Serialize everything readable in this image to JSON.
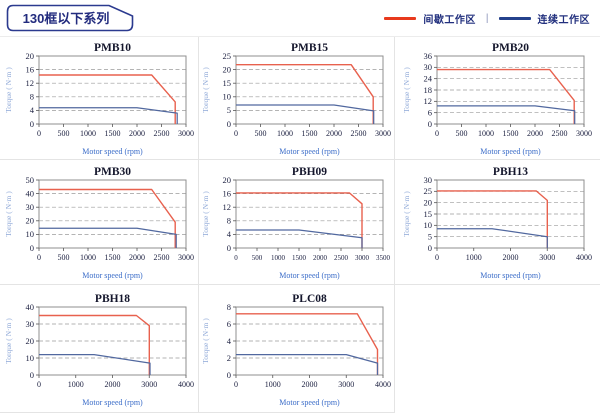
{
  "page": {
    "title": "130框以下系列"
  },
  "legend": {
    "intermittent_label": "间歇工作区",
    "continuous_label": "连续工作区",
    "separator": "|",
    "intermittent_color": "#e8391d",
    "continuous_color": "#24418c"
  },
  "chart_style": {
    "red_line_color": "#e8614e",
    "blue_line_color": "#51689f",
    "frame_color": "#8f8f8f",
    "grid_color": "#9b9b9b",
    "title_color": "#14162c",
    "tick_label_color": "#1c2040",
    "xlabel_color": "#3a6cc8",
    "ylabel_color": "#8fa9d8",
    "grid_on": true,
    "legend_position": "top-right-of-page"
  },
  "chart_data": [
    {
      "type": "line",
      "title": "PMB10",
      "xlabel": "Motor speed (rpm)",
      "ylabel": "Torque ( N·m )",
      "xlim": [
        0,
        3000
      ],
      "ylim": [
        0,
        20
      ],
      "xticks": [
        0,
        500,
        1000,
        1500,
        2000,
        2500,
        3000
      ],
      "yticks": [
        0,
        4,
        8,
        12,
        16,
        20
      ],
      "series": [
        {
          "name": "间歇工作区",
          "color": "red",
          "points": [
            [
              0,
              14.4
            ],
            [
              2300,
              14.4
            ],
            [
              2780,
              6.5
            ],
            [
              2780,
              0
            ]
          ]
        },
        {
          "name": "连续工作区",
          "color": "blue",
          "points": [
            [
              0,
              4.8
            ],
            [
              2000,
              4.8
            ],
            [
              2820,
              3.2
            ],
            [
              2820,
              0
            ]
          ]
        }
      ]
    },
    {
      "type": "line",
      "title": "PMB15",
      "xlabel": "Motor speed (rpm)",
      "ylabel": "Torque ( N·m )",
      "xlim": [
        0,
        3000
      ],
      "ylim": [
        0,
        25
      ],
      "xticks": [
        0,
        500,
        1000,
        1500,
        2000,
        2500,
        3000
      ],
      "yticks": [
        0,
        5,
        10,
        15,
        20,
        25
      ],
      "series": [
        {
          "name": "间歇工作区",
          "color": "red",
          "points": [
            [
              0,
              21.8
            ],
            [
              2350,
              21.8
            ],
            [
              2800,
              10
            ],
            [
              2800,
              0
            ]
          ]
        },
        {
          "name": "连续工作区",
          "color": "blue",
          "points": [
            [
              0,
              7
            ],
            [
              2000,
              7
            ],
            [
              2810,
              4.8
            ],
            [
              2810,
              0
            ]
          ]
        }
      ]
    },
    {
      "type": "line",
      "title": "PMB20",
      "xlabel": "Motor speed (rpm)",
      "ylabel": "Torque ( N·m )",
      "xlim": [
        0,
        3000
      ],
      "ylim": [
        0,
        36
      ],
      "xticks": [
        0,
        500,
        1000,
        1500,
        2000,
        2500,
        3000
      ],
      "yticks": [
        0,
        6,
        12,
        18,
        24,
        30,
        36
      ],
      "series": [
        {
          "name": "间歇工作区",
          "color": "red",
          "points": [
            [
              0,
              28.8
            ],
            [
              2300,
              28.8
            ],
            [
              2800,
              12.5
            ],
            [
              2800,
              0
            ]
          ]
        },
        {
          "name": "连续工作区",
          "color": "blue",
          "points": [
            [
              0,
              9.6
            ],
            [
              2000,
              9.6
            ],
            [
              2810,
              7
            ],
            [
              2810,
              0
            ]
          ]
        }
      ]
    },
    {
      "type": "line",
      "title": "PMB30",
      "xlabel": "Motor speed (rpm)",
      "ylabel": "Torque ( N·m )",
      "xlim": [
        0,
        3000
      ],
      "ylim": [
        0,
        50
      ],
      "xticks": [
        0,
        500,
        1000,
        1500,
        2000,
        2500,
        3000
      ],
      "yticks": [
        0,
        10,
        20,
        30,
        40,
        50
      ],
      "series": [
        {
          "name": "间歇工作区",
          "color": "red",
          "points": [
            [
              0,
              43
            ],
            [
              2300,
              43
            ],
            [
              2780,
              19
            ],
            [
              2780,
              0
            ]
          ]
        },
        {
          "name": "连续工作区",
          "color": "blue",
          "points": [
            [
              0,
              14.5
            ],
            [
              2000,
              14.5
            ],
            [
              2800,
              10
            ],
            [
              2800,
              0
            ]
          ]
        }
      ]
    },
    {
      "type": "line",
      "title": "PBH09",
      "xlabel": "Motor speed (rpm)",
      "ylabel": "Torque ( N·m )",
      "xlim": [
        0,
        3500
      ],
      "ylim": [
        0,
        20
      ],
      "xticks": [
        0,
        500,
        1000,
        1500,
        2000,
        2500,
        3000,
        3500
      ],
      "yticks": [
        0,
        4,
        8,
        12,
        16,
        20
      ],
      "series": [
        {
          "name": "间歇工作区",
          "color": "red",
          "points": [
            [
              0,
              16.2
            ],
            [
              2700,
              16.2
            ],
            [
              3000,
              13
            ],
            [
              3000,
              0
            ]
          ]
        },
        {
          "name": "连续工作区",
          "color": "blue",
          "points": [
            [
              0,
              5.3
            ],
            [
              1500,
              5.3
            ],
            [
              3000,
              3
            ],
            [
              3000,
              0
            ]
          ]
        }
      ]
    },
    {
      "type": "line",
      "title": "PBH13",
      "xlabel": "Motor speed (rpm)",
      "ylabel": "Torque ( N·m )",
      "xlim": [
        0,
        4000
      ],
      "ylim": [
        0,
        30
      ],
      "xticks": [
        0,
        1000,
        2000,
        3000,
        4000
      ],
      "yticks": [
        0,
        5,
        10,
        15,
        20,
        25,
        30
      ],
      "series": [
        {
          "name": "间歇工作区",
          "color": "red",
          "points": [
            [
              0,
              25.2
            ],
            [
              2700,
              25.2
            ],
            [
              3000,
              21
            ],
            [
              3000,
              0
            ]
          ]
        },
        {
          "name": "连续工作区",
          "color": "blue",
          "points": [
            [
              0,
              8.5
            ],
            [
              1500,
              8.5
            ],
            [
              3000,
              5
            ],
            [
              3000,
              0
            ]
          ]
        }
      ]
    },
    {
      "type": "line",
      "title": "PBH18",
      "xlabel": "Motor speed (rpm)",
      "ylabel": "Torque ( N·m )",
      "xlim": [
        0,
        4000
      ],
      "ylim": [
        0,
        40
      ],
      "xticks": [
        0,
        1000,
        2000,
        3000,
        4000
      ],
      "yticks": [
        0,
        10,
        20,
        30,
        40
      ],
      "series": [
        {
          "name": "间歇工作区",
          "color": "red",
          "points": [
            [
              0,
              35
            ],
            [
              2650,
              35
            ],
            [
              3000,
              29
            ],
            [
              3000,
              0
            ]
          ]
        },
        {
          "name": "连续工作区",
          "color": "blue",
          "points": [
            [
              0,
              12
            ],
            [
              1500,
              12
            ],
            [
              3020,
              7
            ],
            [
              3020,
              0
            ]
          ]
        }
      ]
    },
    {
      "type": "line",
      "title": "PLC08",
      "xlabel": "Motor speed (rpm)",
      "ylabel": "Torque ( N·m )",
      "xlim": [
        0,
        4000
      ],
      "ylim": [
        0,
        8
      ],
      "xticks": [
        0,
        1000,
        2000,
        3000,
        4000
      ],
      "yticks": [
        0,
        2,
        4,
        6,
        8
      ],
      "series": [
        {
          "name": "间歇工作区",
          "color": "red",
          "points": [
            [
              0,
              7.2
            ],
            [
              3300,
              7.2
            ],
            [
              3850,
              3
            ],
            [
              3850,
              0
            ]
          ]
        },
        {
          "name": "连续工作区",
          "color": "blue",
          "points": [
            [
              0,
              2.4
            ],
            [
              3000,
              2.4
            ],
            [
              3850,
              1.4
            ],
            [
              3850,
              0
            ]
          ]
        }
      ]
    }
  ]
}
